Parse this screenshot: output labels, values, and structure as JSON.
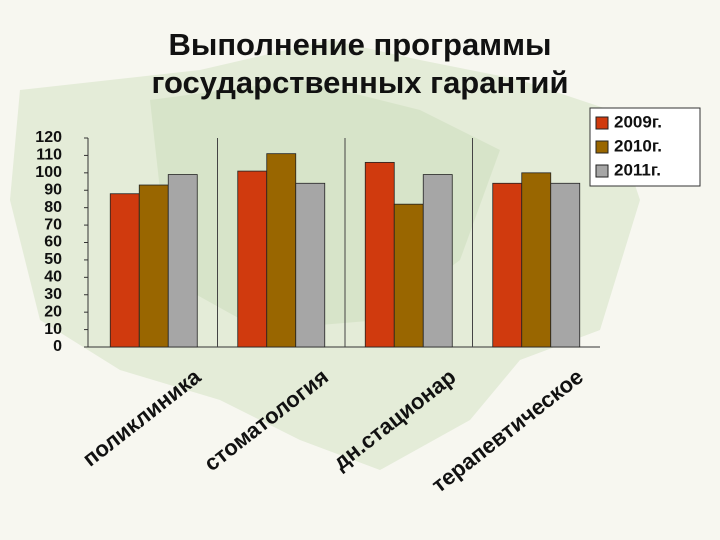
{
  "chart_data": {
    "type": "bar",
    "title": "Выполнение программы государственных гарантий",
    "categories": [
      "поликлиника",
      "стоматология",
      "дн.стационар",
      "терапевтическое"
    ],
    "series": [
      {
        "name": "2009г.",
        "color": "#d03a0e",
        "values": [
          88,
          101,
          106,
          94
        ]
      },
      {
        "name": "2010г.",
        "color": "#996600",
        "values": [
          93,
          111,
          82,
          100
        ]
      },
      {
        "name": "2011г.",
        "color": "#a6a6a6",
        "values": [
          99,
          94,
          99,
          94
        ]
      }
    ],
    "ylim": [
      0,
      120
    ],
    "yticks": [
      0,
      10,
      20,
      30,
      40,
      50,
      60,
      70,
      80,
      90,
      100,
      110,
      120
    ],
    "legend": "top-right"
  }
}
